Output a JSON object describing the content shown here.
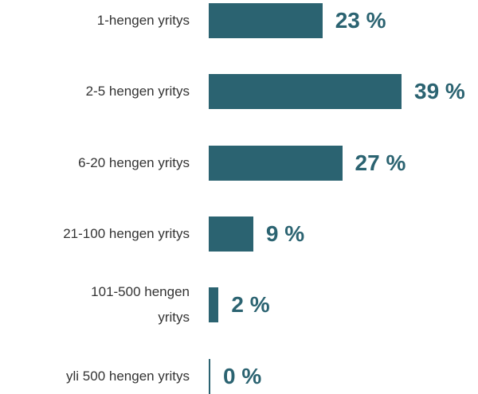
{
  "chart_data": {
    "type": "bar",
    "orientation": "horizontal",
    "categories": [
      "1-hengen yritys",
      "2-5 hengen yritys",
      "6-20 hengen yritys",
      "21-100 hengen yritys",
      "101-500 hengen\nyritys",
      "yli 500 hengen yritys"
    ],
    "values": [
      23,
      39,
      27,
      9,
      2,
      0
    ],
    "value_labels": [
      "23 %",
      "39 %",
      "27 %",
      "9 %",
      "2 %",
      "0 %"
    ],
    "color": "#2b6371"
  }
}
